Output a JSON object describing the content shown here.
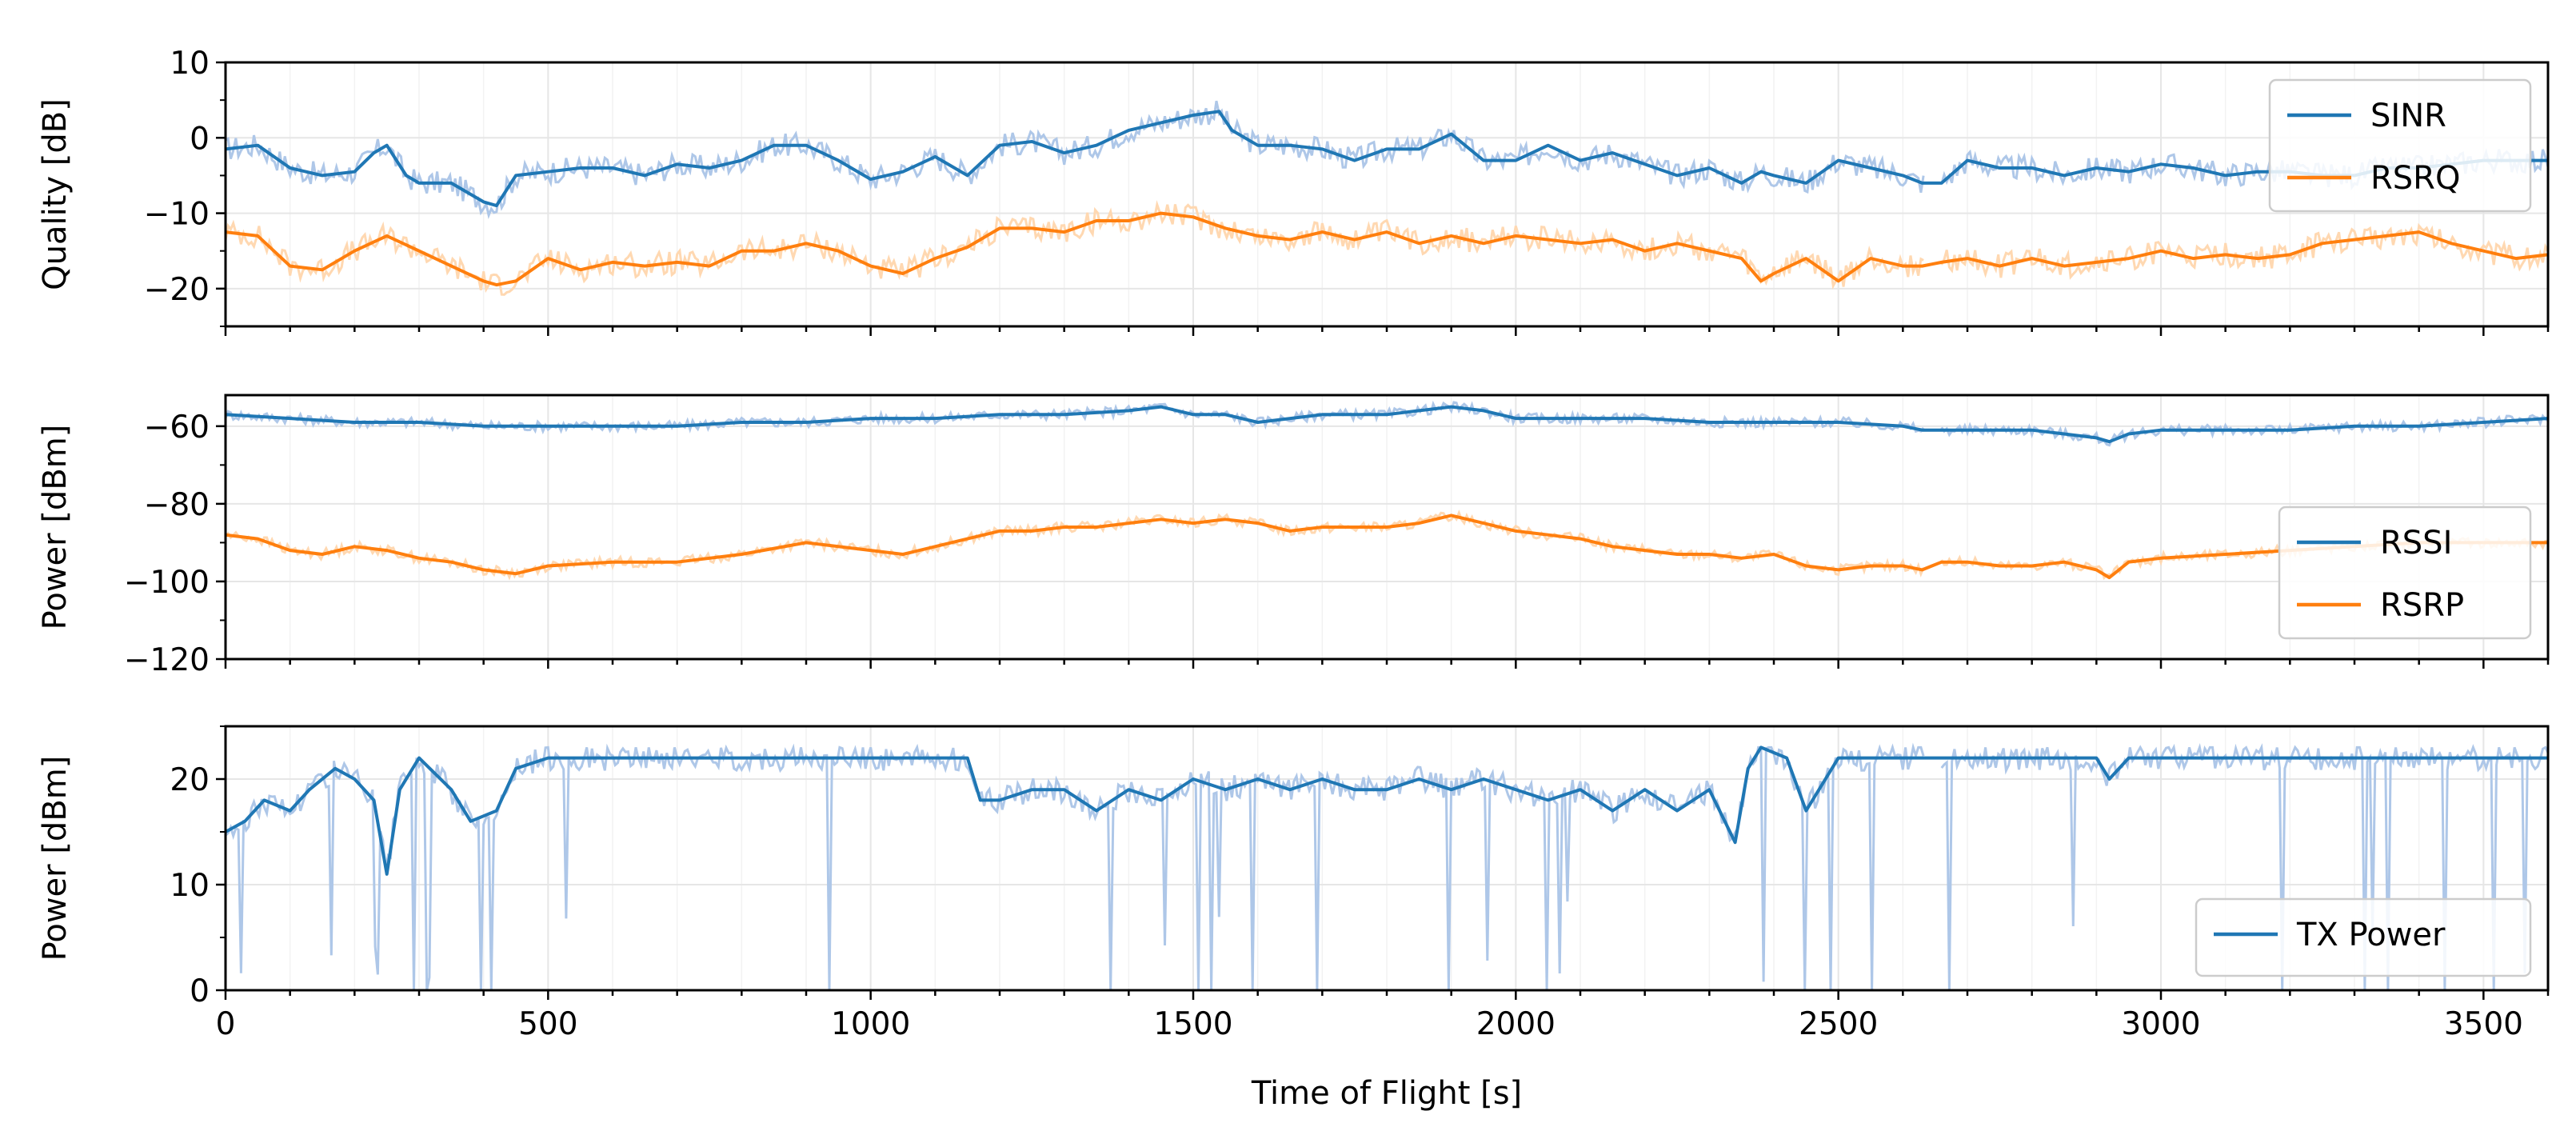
{
  "chart_data": [
    {
      "type": "line",
      "panel": "top",
      "ylabel": "Quality [dB]",
      "xlim": [
        0,
        3600
      ],
      "ylim": [
        -25,
        10
      ],
      "yticks": [
        10,
        0,
        -10,
        -20
      ],
      "ytick_labels": [
        "10",
        "0",
        "−10",
        "−20"
      ],
      "legend_position": "top-right",
      "series": [
        {
          "name": "SINR",
          "color": "#1f77b4",
          "raw_color": "#aec7e8",
          "x": [
            0,
            50,
            100,
            150,
            200,
            230,
            250,
            280,
            300,
            350,
            400,
            420,
            450,
            500,
            550,
            600,
            650,
            700,
            750,
            800,
            850,
            900,
            950,
            1000,
            1050,
            1100,
            1150,
            1200,
            1250,
            1300,
            1350,
            1400,
            1450,
            1500,
            1540,
            1560,
            1600,
            1650,
            1700,
            1750,
            1800,
            1850,
            1900,
            1950,
            2000,
            2050,
            2100,
            2150,
            2200,
            2250,
            2300,
            2350,
            2380,
            2400,
            2450,
            2500,
            2550,
            2600,
            2630,
            2660,
            2700,
            2750,
            2800,
            2850,
            2900,
            2950,
            3000,
            3050,
            3100,
            3150,
            3200,
            3250,
            3300,
            3350,
            3400,
            3450,
            3500,
            3550,
            3600
          ],
          "values": [
            -1.5,
            -1,
            -4,
            -5,
            -4.5,
            -2,
            -1,
            -5,
            -6,
            -6,
            -8.5,
            -9,
            -5,
            -4.5,
            -4,
            -4,
            -5,
            -3.5,
            -4,
            -3,
            -1,
            -1,
            -3,
            -5.5,
            -4.5,
            -2.5,
            -5,
            -1,
            -0.5,
            -2,
            -1,
            1,
            2,
            3,
            3.5,
            1,
            -1,
            -1,
            -1.5,
            -3,
            -1.5,
            -1.5,
            0.5,
            -3,
            -3,
            -1,
            -3,
            -2,
            -3.5,
            -5,
            -4,
            -6,
            -4.5,
            -5,
            -6,
            -3,
            -4,
            -5,
            -6,
            -6,
            -3,
            -4,
            -4,
            -5,
            -4,
            -4.5,
            -3.5,
            -4,
            -5,
            -4.5,
            -4.5,
            -5,
            -5,
            -4,
            -4,
            -3.5,
            -3,
            -3,
            -3
          ]
        },
        {
          "name": "RSRQ",
          "color": "#ff7f0e",
          "raw_color": "#ffd8b1",
          "x": [
            0,
            50,
            100,
            150,
            200,
            250,
            300,
            350,
            400,
            420,
            450,
            500,
            550,
            600,
            650,
            700,
            750,
            800,
            850,
            900,
            950,
            1000,
            1050,
            1100,
            1150,
            1200,
            1250,
            1300,
            1350,
            1400,
            1450,
            1500,
            1550,
            1600,
            1650,
            1700,
            1750,
            1800,
            1850,
            1900,
            1950,
            2000,
            2050,
            2100,
            2150,
            2200,
            2250,
            2300,
            2350,
            2380,
            2400,
            2450,
            2500,
            2550,
            2600,
            2630,
            2660,
            2700,
            2750,
            2800,
            2850,
            2900,
            2950,
            3000,
            3050,
            3100,
            3150,
            3200,
            3250,
            3300,
            3350,
            3400,
            3450,
            3500,
            3550,
            3600
          ],
          "values": [
            -12.5,
            -13,
            -17,
            -17.5,
            -15,
            -13,
            -15,
            -17,
            -19,
            -19.5,
            -19,
            -16,
            -17.5,
            -16.5,
            -17,
            -16.5,
            -17,
            -15,
            -15,
            -14,
            -15,
            -17,
            -18,
            -16,
            -14.5,
            -12,
            -12,
            -12.5,
            -11,
            -11,
            -10,
            -10.5,
            -12,
            -13,
            -13.5,
            -12.5,
            -13.5,
            -12.5,
            -14,
            -13,
            -14,
            -13,
            -13.5,
            -14,
            -13.5,
            -15,
            -14,
            -15,
            -16,
            -19,
            -18,
            -16,
            -19,
            -16,
            -17,
            -17,
            -16.5,
            -16,
            -17,
            -16,
            -17,
            -16.5,
            -16,
            -15,
            -16,
            -15.5,
            -16,
            -15.5,
            -14,
            -13.5,
            -13,
            -12.5,
            -14,
            -15,
            -16,
            -15.5
          ]
        }
      ]
    },
    {
      "type": "line",
      "panel": "middle",
      "ylabel": "Power [dBm]",
      "xlim": [
        0,
        3600
      ],
      "ylim": [
        -120,
        -52
      ],
      "yticks": [
        -60,
        -80,
        -100,
        -120
      ],
      "ytick_labels": [
        "−60",
        "−80",
        "−100",
        "−120"
      ],
      "legend_position": "lower-right",
      "series": [
        {
          "name": "RSSI",
          "color": "#1f77b4",
          "raw_color": "#aec7e8",
          "x": [
            0,
            100,
            200,
            300,
            400,
            500,
            600,
            700,
            800,
            900,
            1000,
            1100,
            1200,
            1300,
            1400,
            1450,
            1500,
            1550,
            1600,
            1700,
            1800,
            1850,
            1900,
            1950,
            2000,
            2100,
            2200,
            2300,
            2400,
            2500,
            2600,
            2630,
            2660,
            2700,
            2800,
            2850,
            2900,
            2920,
            2950,
            3000,
            3100,
            3200,
            3300,
            3400,
            3500,
            3600
          ],
          "values": [
            -57,
            -58,
            -59,
            -59,
            -60,
            -60,
            -60,
            -60,
            -59,
            -59,
            -58,
            -58,
            -57,
            -57,
            -56,
            -55,
            -57,
            -57,
            -59,
            -57,
            -57,
            -56,
            -55,
            -56,
            -58,
            -58,
            -58,
            -59,
            -59,
            -59,
            -60,
            -61,
            -61,
            -61,
            -61,
            -62,
            -63,
            -64,
            -62,
            -61,
            -61,
            -61,
            -60,
            -60,
            -59,
            -58
          ]
        },
        {
          "name": "RSRP",
          "color": "#ff7f0e",
          "raw_color": "#ffd8b1",
          "x": [
            0,
            50,
            100,
            150,
            200,
            250,
            300,
            350,
            400,
            450,
            500,
            600,
            700,
            800,
            900,
            1000,
            1050,
            1100,
            1150,
            1200,
            1250,
            1300,
            1350,
            1400,
            1450,
            1500,
            1550,
            1600,
            1650,
            1700,
            1750,
            1800,
            1850,
            1900,
            1950,
            2000,
            2050,
            2100,
            2150,
            2200,
            2250,
            2300,
            2350,
            2400,
            2450,
            2500,
            2550,
            2600,
            2630,
            2660,
            2700,
            2750,
            2800,
            2850,
            2900,
            2920,
            2950,
            3000,
            3100,
            3200,
            3300,
            3400,
            3500,
            3600
          ],
          "values": [
            -88,
            -89,
            -92,
            -93,
            -91,
            -92,
            -94,
            -95,
            -97,
            -98,
            -96,
            -95,
            -95,
            -93,
            -90,
            -92,
            -93,
            -91,
            -89,
            -87,
            -87,
            -86,
            -86,
            -85,
            -84,
            -85,
            -84,
            -85,
            -87,
            -86,
            -86,
            -86,
            -85,
            -83,
            -85,
            -87,
            -88,
            -89,
            -91,
            -92,
            -93,
            -93,
            -94,
            -93,
            -96,
            -97,
            -96,
            -96,
            -97,
            -95,
            -95,
            -96,
            -96,
            -95,
            -97,
            -99,
            -95,
            -94,
            -93,
            -92,
            -91,
            -90,
            -90,
            -90
          ]
        }
      ]
    },
    {
      "type": "line",
      "panel": "bottom",
      "ylabel": "Power [dBm]",
      "xlabel": "Time of Flight [s]",
      "xlim": [
        0,
        3600
      ],
      "ylim": [
        0,
        25
      ],
      "yticks": [
        0,
        10,
        20
      ],
      "ytick_labels": [
        "0",
        "10",
        "20"
      ],
      "xticks": [
        0,
        500,
        1000,
        1500,
        2000,
        2500,
        3000,
        3500
      ],
      "xtick_labels": [
        "0",
        "500",
        "1000",
        "1500",
        "2000",
        "2500",
        "3000",
        "3500"
      ],
      "legend_position": "lower-right",
      "series": [
        {
          "name": "TX Power",
          "color": "#1f77b4",
          "raw_color": "#aec7e8",
          "x": [
            0,
            30,
            60,
            100,
            130,
            170,
            200,
            230,
            250,
            270,
            300,
            350,
            380,
            420,
            450,
            500,
            600,
            700,
            800,
            900,
            1000,
            1100,
            1150,
            1170,
            1200,
            1250,
            1300,
            1350,
            1400,
            1450,
            1500,
            1550,
            1600,
            1650,
            1700,
            1750,
            1800,
            1850,
            1900,
            1950,
            2000,
            2050,
            2100,
            2150,
            2200,
            2250,
            2300,
            2340,
            2360,
            2380,
            2420,
            2450,
            2500,
            2550,
            2600,
            2630,
            2660,
            2700,
            2800,
            2850,
            2900,
            2920,
            2950,
            3000,
            3100,
            3200,
            3300,
            3400,
            3500,
            3600
          ],
          "values": [
            15,
            16,
            18,
            17,
            19,
            21,
            20,
            18,
            11,
            19,
            22,
            19,
            16,
            17,
            21,
            22,
            22,
            22,
            22,
            22,
            22,
            22,
            22,
            18,
            18,
            19,
            19,
            17,
            19,
            18,
            20,
            19,
            20,
            19,
            20,
            19,
            19,
            20,
            19,
            20,
            19,
            18,
            19,
            17,
            19,
            17,
            19,
            14,
            21,
            23,
            22,
            17,
            22,
            22,
            22,
            22,
            22,
            22,
            22,
            22,
            22,
            20,
            22,
            22,
            22,
            22,
            22,
            22,
            22,
            22
          ]
        }
      ]
    }
  ]
}
